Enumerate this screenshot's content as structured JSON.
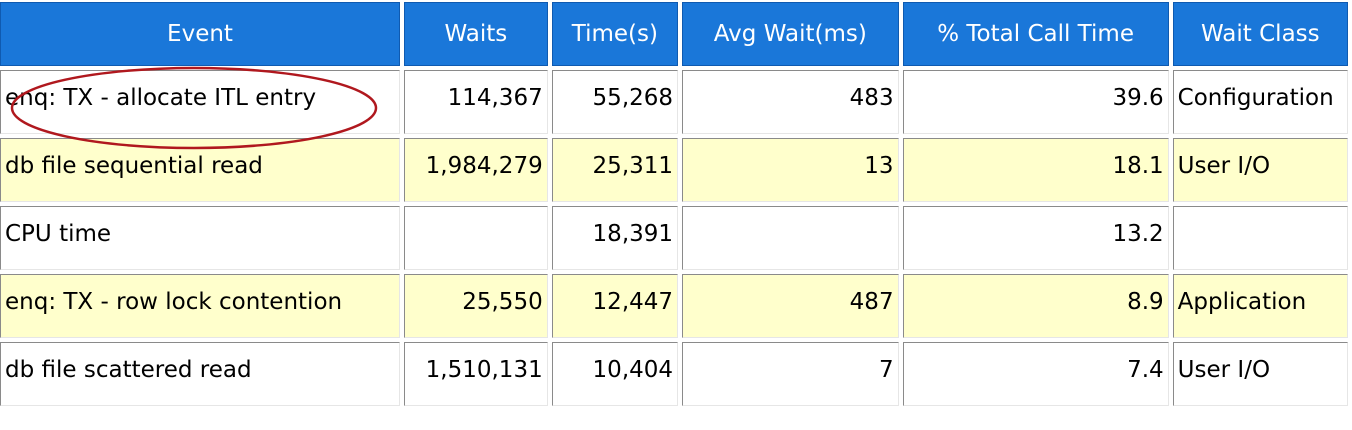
{
  "table": {
    "columns": [
      "Event",
      "Waits",
      "Time(s)",
      "Avg Wait(ms)",
      "% Total Call Time",
      "Wait Class"
    ],
    "rows": [
      {
        "event": "enq: TX - allocate ITL entry",
        "waits": "114,367",
        "time": "55,268",
        "avg_wait": "483",
        "pct": "39.6",
        "wait_class": "Configuration"
      },
      {
        "event": "db file sequential read",
        "waits": "1,984,279",
        "time": "25,311",
        "avg_wait": "13",
        "pct": "18.1",
        "wait_class": "User I/O"
      },
      {
        "event": "CPU time",
        "waits": "",
        "time": "18,391",
        "avg_wait": "",
        "pct": "13.2",
        "wait_class": ""
      },
      {
        "event": "enq: TX - row lock contention",
        "waits": "25,550",
        "time": "12,447",
        "avg_wait": "487",
        "pct": "8.9",
        "wait_class": "Application"
      },
      {
        "event": "db file scattered read",
        "waits": "1,510,131",
        "time": "10,404",
        "avg_wait": "7",
        "pct": "7.4",
        "wait_class": "User I/O"
      }
    ]
  },
  "colors": {
    "header_bg": "#1a77d9",
    "header_text": "#ffffff",
    "row_alt_bg": "#ffffcc",
    "row_bg": "#ffffff",
    "highlight_ellipse": "#b0181e"
  },
  "annotation": {
    "shape": "ellipse",
    "highlights": "enq: TX - allocate ITL entry"
  }
}
